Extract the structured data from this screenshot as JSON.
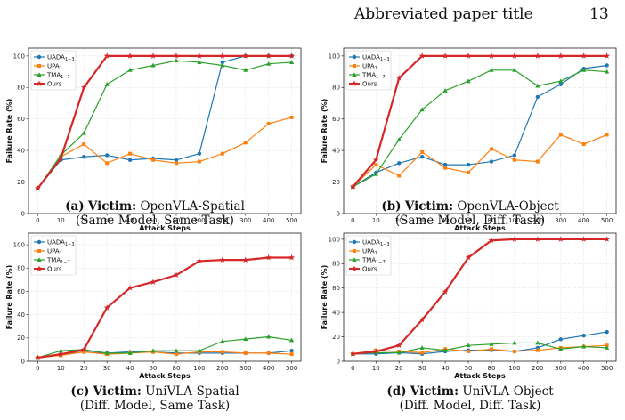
{
  "header": {
    "title": "Abbreviated paper title",
    "page": "13"
  },
  "chart_data": [
    {
      "type": "line",
      "caption": {
        "letter": "(a)",
        "victim_label": "Victim:",
        "victim": "OpenVLA-Spatial",
        "subtitle": "(Same Model, Same Task)"
      },
      "xlabel": "Attack Steps",
      "ylabel": "Failure Rate (%)",
      "x": [
        "0",
        "10",
        "20",
        "30",
        "40",
        "50",
        "80",
        "100",
        "200",
        "300",
        "400",
        "500"
      ],
      "ylim": [
        0,
        105
      ],
      "yticks": [
        0,
        20,
        40,
        60,
        80,
        100
      ],
      "grid": true,
      "legend": "top-left",
      "series": [
        {
          "name": "UADA",
          "sub": "1−3",
          "color": "#1f77b4",
          "marker": "circle",
          "values": [
            16,
            34,
            36,
            37,
            34,
            35,
            34,
            38,
            96,
            100,
            100,
            100
          ]
        },
        {
          "name": "UPA",
          "sub": "1",
          "color": "#ff7f0e",
          "marker": "square",
          "values": [
            16,
            36,
            44,
            32,
            38,
            34,
            32,
            33,
            38,
            45,
            57,
            61
          ]
        },
        {
          "name": "TMA",
          "sub": "1−7",
          "color": "#2ca02c",
          "marker": "triangle",
          "values": [
            16,
            37,
            51,
            82,
            91,
            94,
            97,
            96,
            94,
            91,
            95,
            96
          ]
        },
        {
          "name": "Ours",
          "sub": "",
          "color": "#d62728",
          "marker": "star",
          "values": [
            16,
            35,
            80,
            100,
            100,
            100,
            100,
            100,
            100,
            100,
            100,
            100
          ]
        }
      ]
    },
    {
      "type": "line",
      "caption": {
        "letter": "(b)",
        "victim_label": "Victim:",
        "victim": "OpenVLA-Object",
        "subtitle": "(Same Model, Diff. Task)"
      },
      "xlabel": "Attack Steps",
      "ylabel": "Failure Rate (%)",
      "x": [
        "0",
        "10",
        "20",
        "30",
        "40",
        "50",
        "80",
        "100",
        "200",
        "300",
        "400",
        "500"
      ],
      "ylim": [
        0,
        105
      ],
      "yticks": [
        0,
        20,
        40,
        60,
        80,
        100
      ],
      "grid": true,
      "legend": "top-left",
      "series": [
        {
          "name": "UADA",
          "sub": "1−3",
          "color": "#1f77b4",
          "marker": "circle",
          "values": [
            17,
            26,
            32,
            36,
            31,
            31,
            33,
            37,
            74,
            82,
            92,
            94
          ]
        },
        {
          "name": "UPA",
          "sub": "1",
          "color": "#ff7f0e",
          "marker": "square",
          "values": [
            17,
            31,
            24,
            39,
            29,
            26,
            41,
            34,
            33,
            50,
            44,
            50
          ]
        },
        {
          "name": "TMA",
          "sub": "1−7",
          "color": "#2ca02c",
          "marker": "triangle",
          "values": [
            17,
            25,
            47,
            66,
            78,
            84,
            91,
            91,
            81,
            84,
            91,
            90
          ]
        },
        {
          "name": "Ours",
          "sub": "",
          "color": "#d62728",
          "marker": "star",
          "values": [
            17,
            34,
            86,
            100,
            100,
            100,
            100,
            100,
            100,
            100,
            100,
            100
          ]
        }
      ]
    },
    {
      "type": "line",
      "caption": {
        "letter": "(c)",
        "victim_label": "Victim:",
        "victim": "UniVLA-Spatial",
        "subtitle": "(Diff. Model, Same Task)"
      },
      "xlabel": "Attack Steps",
      "ylabel": "Failure Rate (%)",
      "x": [
        "0",
        "10",
        "20",
        "30",
        "40",
        "50",
        "80",
        "100",
        "200",
        "300",
        "400",
        "500"
      ],
      "ylim": [
        0,
        110
      ],
      "yticks": [
        0,
        20,
        40,
        60,
        80,
        100
      ],
      "grid": true,
      "legend": "top-left",
      "series": [
        {
          "name": "UADA",
          "sub": "1−3",
          "color": "#1f77b4",
          "marker": "circle",
          "values": [
            3,
            6,
            8,
            7,
            8,
            8,
            7,
            7,
            7,
            7,
            7,
            9
          ]
        },
        {
          "name": "UPA",
          "sub": "1",
          "color": "#ff7f0e",
          "marker": "square",
          "values": [
            3,
            5,
            8,
            6,
            7,
            8,
            6,
            8,
            8,
            7,
            7,
            6
          ]
        },
        {
          "name": "TMA",
          "sub": "1−7",
          "color": "#2ca02c",
          "marker": "triangle",
          "values": [
            3,
            9,
            10,
            7,
            7,
            9,
            9,
            9,
            17,
            19,
            21,
            18
          ]
        },
        {
          "name": "Ours",
          "sub": "",
          "color": "#d62728",
          "marker": "star",
          "values": [
            3,
            6,
            10,
            46,
            63,
            68,
            74,
            86,
            87,
            87,
            89,
            89
          ]
        }
      ]
    },
    {
      "type": "line",
      "caption": {
        "letter": "(d)",
        "victim_label": "Victim:",
        "victim": "UniVLA-Object",
        "subtitle": "(Diff. Model, Diff. Task)"
      },
      "xlabel": "Attack Steps",
      "ylabel": "Failure Rate (%)",
      "x": [
        "0",
        "10",
        "20",
        "30",
        "40",
        "50",
        "80",
        "100",
        "200",
        "300",
        "400",
        "500"
      ],
      "ylim": [
        0,
        105
      ],
      "yticks": [
        0,
        20,
        40,
        60,
        80,
        100
      ],
      "grid": true,
      "legend": "top-left",
      "series": [
        {
          "name": "UADA",
          "sub": "1−3",
          "color": "#1f77b4",
          "marker": "circle",
          "values": [
            6,
            6,
            7,
            6,
            8,
            9,
            9,
            8,
            11,
            18,
            21,
            24
          ]
        },
        {
          "name": "UPA",
          "sub": "1",
          "color": "#ff7f0e",
          "marker": "square",
          "values": [
            6,
            9,
            8,
            7,
            10,
            8,
            10,
            8,
            9,
            11,
            12,
            13
          ]
        },
        {
          "name": "TMA",
          "sub": "1−7",
          "color": "#2ca02c",
          "marker": "triangle",
          "values": [
            6,
            7,
            7,
            11,
            9,
            13,
            14,
            15,
            15,
            10,
            12,
            11
          ]
        },
        {
          "name": "Ours",
          "sub": "",
          "color": "#d62728",
          "marker": "star",
          "values": [
            6,
            8,
            13,
            34,
            57,
            85,
            99,
            100,
            100,
            100,
            100,
            100
          ]
        }
      ]
    }
  ]
}
